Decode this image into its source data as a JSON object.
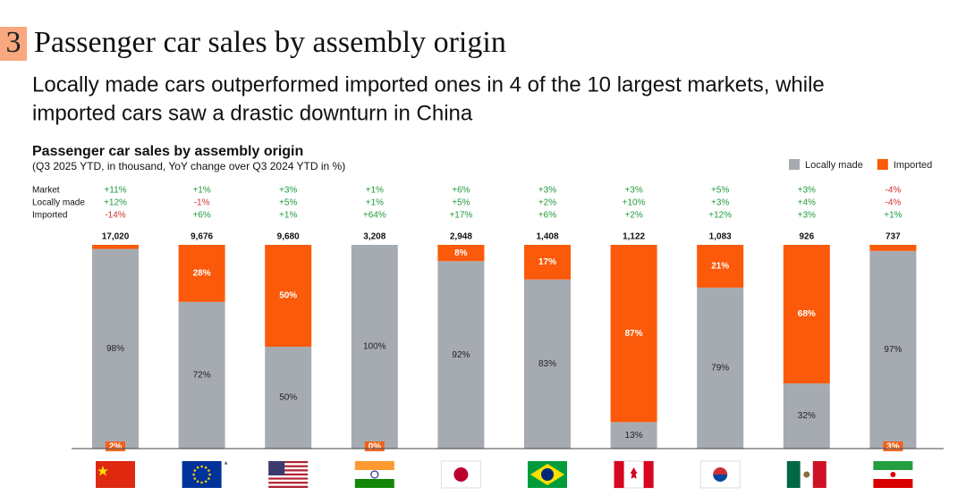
{
  "header": {
    "number": "3",
    "title": "Passenger car sales by assembly origin",
    "subtitle_lines": [
      "Locally made cars outperformed imported ones in 4 of the 10 largest markets, while",
      "imported cars saw a drastic downturn in China"
    ]
  },
  "chart_data": {
    "type": "stacked_bar_100",
    "title": "Passenger car sales by assembly origin",
    "subtitle": "(Q3 2025 YTD, in thousand, YoY change over Q3 2024 YTD in %)",
    "categories": [
      null,
      null,
      null,
      null,
      null,
      null,
      null,
      null,
      null,
      null
    ],
    "category_notes": [
      null,
      "*",
      null,
      null,
      null,
      null,
      null,
      null,
      null,
      null
    ],
    "ylim": [
      0,
      100
    ],
    "legend": "top-right",
    "series": [
      {
        "name": "Locally made",
        "color": "#a6abb1",
        "values": [
          98,
          72,
          50,
          100,
          92,
          83,
          13,
          79,
          32,
          97
        ],
        "value_labels": [
          "98%",
          "72%",
          "50%",
          "100%",
          "92%",
          "83%",
          "13%",
          "79%",
          "32%",
          "97%"
        ]
      },
      {
        "name": "Imported",
        "color": "#fa5a0a",
        "values": [
          2,
          28,
          50,
          0,
          8,
          17,
          87,
          21,
          68,
          3
        ],
        "value_labels": [
          "2%",
          "28%",
          "50%",
          "0%",
          "8%",
          "17%",
          "87%",
          "21%",
          "68%",
          "3%"
        ]
      }
    ],
    "totals": {
      "values": [
        17020,
        9676,
        9680,
        3208,
        2948,
        1408,
        1122,
        1083,
        926,
        737
      ],
      "value_labels": [
        "17,020",
        "9,676",
        "9,680",
        "3,208",
        "2,948",
        "1,408",
        "1,122",
        "1,083",
        "926",
        "737"
      ]
    },
    "yoy_rows": [
      {
        "label": "Market",
        "values": [
          11,
          1,
          3,
          1,
          6,
          3,
          3,
          5,
          3,
          -4
        ],
        "value_labels": [
          "+11%",
          "+1%",
          "+3%",
          "+1%",
          "+6%",
          "+3%",
          "+3%",
          "+5%",
          "+3%",
          "-4%"
        ]
      },
      {
        "label": "Locally made",
        "values": [
          12,
          -1,
          5,
          1,
          5,
          2,
          10,
          3,
          4,
          -4
        ],
        "value_labels": [
          "+12%",
          "-1%",
          "+5%",
          "+1%",
          "+5%",
          "+2%",
          "+10%",
          "+3%",
          "+4%",
          "-4%"
        ]
      },
      {
        "label": "Imported",
        "values": [
          -14,
          6,
          1,
          64,
          17,
          6,
          2,
          12,
          3,
          1
        ],
        "value_labels": [
          "-14%",
          "+6%",
          "+1%",
          "+64%",
          "+17%",
          "+6%",
          "+2%",
          "+12%",
          "+3%",
          "+1%"
        ]
      }
    ]
  }
}
